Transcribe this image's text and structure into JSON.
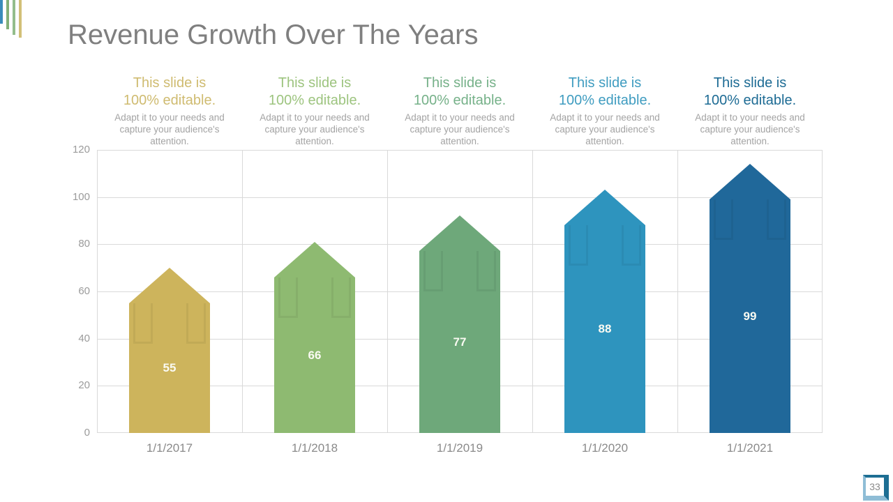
{
  "slide": {
    "title": "Revenue Growth Over The Years"
  },
  "logo": {
    "bars": [
      {
        "color": "#3a8cba",
        "height": 34
      },
      {
        "color": "#82b077",
        "height": 42
      },
      {
        "color": "#93bd8b",
        "height": 50
      },
      {
        "color": "#d2c077",
        "height": 54
      }
    ]
  },
  "columns": {
    "heading_line1": "This slide is",
    "heading_line2": "100% editable.",
    "body": "Adapt it to your needs and capture your audience's attention.",
    "heading_colors": [
      "#cfbb70",
      "#9dc47f",
      "#76b189",
      "#3f9cc0",
      "#1d6b94"
    ],
    "body_color": "#a3a3a3"
  },
  "chart_data": {
    "type": "bar",
    "bar_shape": "up-arrow",
    "title": "Revenue Growth Over The Years",
    "categories": [
      "1/1/2017",
      "1/1/2018",
      "1/1/2019",
      "1/1/2020",
      "1/1/2021"
    ],
    "values": [
      55,
      66,
      77,
      88,
      99
    ],
    "bar_colors": [
      "#cdb45c",
      "#8eba71",
      "#6ea87a",
      "#2e94be",
      "#20689a"
    ],
    "value_label_color": "#fafaf2",
    "xlabel": "",
    "ylabel": "",
    "ylim": [
      0,
      120
    ],
    "yticks": [
      0,
      20,
      40,
      60,
      80,
      100,
      120
    ],
    "arrow_head_units": 15,
    "grid": true,
    "legend": false,
    "grid_color": "#d9d9d9",
    "axis_label_color": "#9b9b9b"
  },
  "badge": {
    "number": "33",
    "dark_color": "#1d6e93",
    "light_color": "#8fbdd6"
  }
}
